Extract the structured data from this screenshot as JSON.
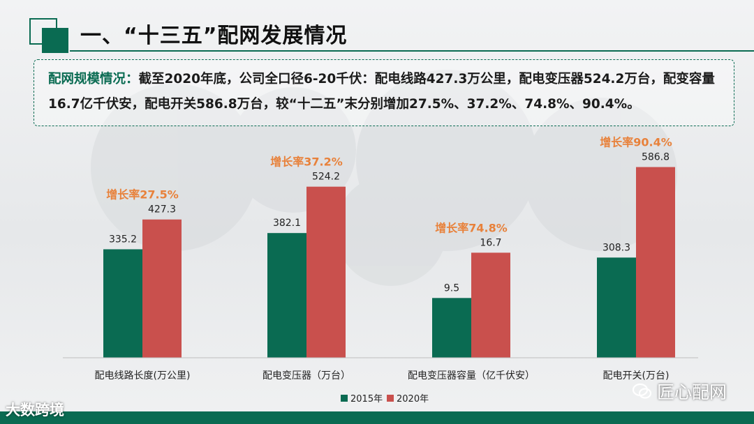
{
  "title": "一、“十三五”配网发展情况",
  "summary": {
    "lead": "配网规模情况：",
    "text": "截至2020年底，公司全口径6-20千伏：配电线路427.3万公里，配电变压器524.2万台，配变容量16.7亿千伏安，配电开关586.8万台，较“十二五”末分别增加27.5%、37.2%、74.8%、90.4%。"
  },
  "chart_data": {
    "type": "bar",
    "categories": [
      "配电线路长度(万公里)",
      "配电变压器（万台）",
      "配电变压器容量（亿千伏安）",
      "配电开关(万台)"
    ],
    "series": [
      {
        "name": "2015年",
        "values": [
          335.2,
          382.1,
          9.5,
          308.3
        ],
        "color": "#0a6b52"
      },
      {
        "name": "2020年",
        "values": [
          427.3,
          524.2,
          16.7,
          586.8
        ],
        "color": "#c9504d"
      }
    ],
    "growth_labels": [
      "增长率27.5%",
      "增长率37.2%",
      "增长率74.8%",
      "增长率90.4%"
    ],
    "growth_color": "#e8813a",
    "legend_position": "bottom-center",
    "independent_scale_per_category": true
  },
  "watermarks": {
    "left": "大数跨境",
    "right": "匠心配网"
  },
  "colors": {
    "accent": "#0a6b52",
    "bar_2020": "#c9504d"
  }
}
